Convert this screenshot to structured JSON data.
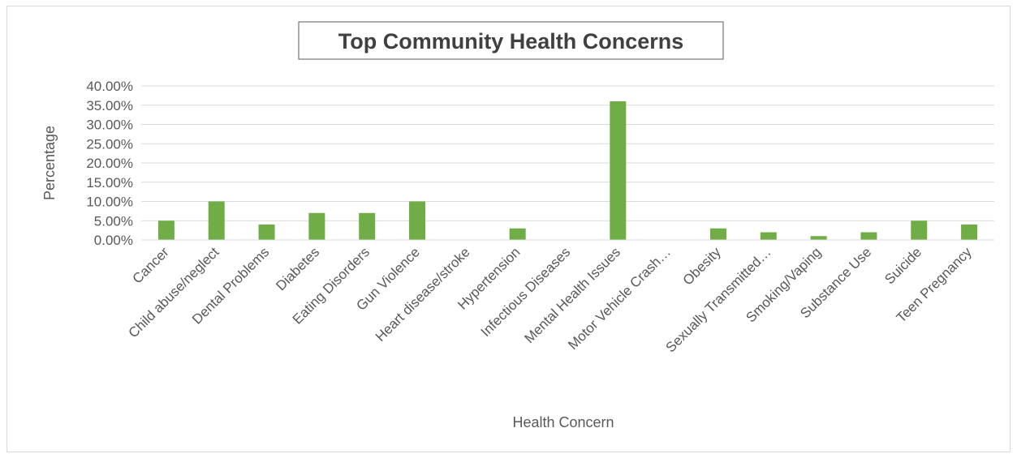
{
  "chart_data": {
    "type": "bar",
    "title": "Top Community Health Concerns",
    "xlabel": "Health Concern",
    "ylabel": "Percentage",
    "ylim": [
      0,
      0.4
    ],
    "ytick_step": 0.05,
    "ytick_labels": [
      "0.00%",
      "5.00%",
      "10.00%",
      "15.00%",
      "20.00%",
      "25.00%",
      "30.00%",
      "35.00%",
      "40.00%"
    ],
    "grid": true,
    "legend": "none",
    "bar_color": "#70ad47",
    "categories": [
      "Cancer",
      "Child abuse/neglect",
      "Dental Problems",
      "Diabetes",
      "Eating Disorders",
      "Gun Violence",
      "Heart disease/stroke",
      "Hypertension",
      "Infectious Diseases",
      "Mental Health Issues",
      "Motor Vehicle Crash…",
      "Obesity",
      "Sexually Transmitted…",
      "Smoking/Vaping",
      "Substance Use",
      "Suicide",
      "Teen Pregnancy"
    ],
    "values": [
      0.05,
      0.1,
      0.04,
      0.07,
      0.07,
      0.1,
      0,
      0.03,
      0,
      0.36,
      0,
      0.03,
      0.02,
      0.01,
      0.02,
      0.05,
      0.04
    ]
  }
}
